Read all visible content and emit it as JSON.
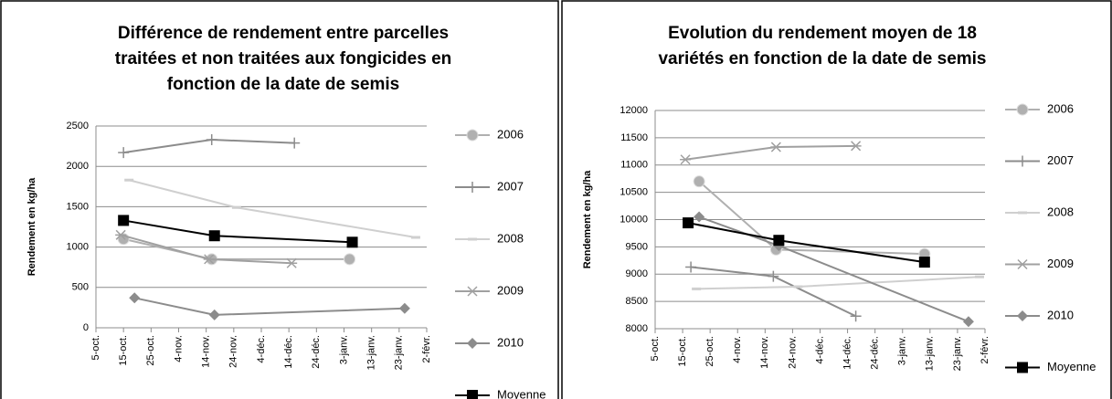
{
  "chart_data": [
    {
      "type": "line",
      "title": [
        "Différence de rendement entre parcelles",
        "traitées et non traitées aux fongicides en",
        "fonction de la date de semis"
      ],
      "ylabel": "Rendement en kg/ha",
      "xlim": [
        0,
        120
      ],
      "xticks": [
        {
          "value": 0,
          "label": "5-oct."
        },
        {
          "value": 10,
          "label": "15-oct."
        },
        {
          "value": 20,
          "label": "25-oct."
        },
        {
          "value": 30,
          "label": "4-nov."
        },
        {
          "value": 40,
          "label": "14-nov."
        },
        {
          "value": 50,
          "label": "24-nov."
        },
        {
          "value": 60,
          "label": "4-déc."
        },
        {
          "value": 70,
          "label": "14-déc."
        },
        {
          "value": 80,
          "label": "24-déc."
        },
        {
          "value": 90,
          "label": "3-janv."
        },
        {
          "value": 100,
          "label": "13-janv."
        },
        {
          "value": 110,
          "label": "23-janv."
        },
        {
          "value": 120,
          "label": "2-févr."
        }
      ],
      "ylim": [
        0,
        2500
      ],
      "yticks": [
        0,
        500,
        1000,
        1500,
        2000,
        2500
      ],
      "grid": true,
      "series": [
        {
          "name": "2006",
          "color": "#b0b0b0",
          "marker": "circle",
          "x": [
            10,
            42,
            92
          ],
          "values": [
            1100,
            850,
            850
          ]
        },
        {
          "name": "2007",
          "color": "#8c8c8c",
          "marker": "plus",
          "x": [
            10,
            42,
            72
          ],
          "values": [
            2170,
            2330,
            2290
          ]
        },
        {
          "name": "2008",
          "color": "#cfcfcf",
          "marker": "dash",
          "x": [
            12,
            51,
            116
          ],
          "values": [
            1830,
            1490,
            1120
          ]
        },
        {
          "name": "2009",
          "color": "#a0a0a0",
          "marker": "star",
          "x": [
            9,
            41,
            71
          ],
          "values": [
            1150,
            850,
            800
          ]
        },
        {
          "name": "2010",
          "color": "#8c8c8c",
          "marker": "diamond",
          "x": [
            14,
            43,
            112
          ],
          "values": [
            370,
            160,
            240
          ]
        },
        {
          "name": "Moyenne",
          "color": "#000000",
          "marker": "square",
          "x": [
            10,
            43,
            93
          ],
          "values": [
            1330,
            1140,
            1060
          ]
        }
      ]
    },
    {
      "type": "line",
      "title": [
        "Evolution du rendement moyen de 18",
        "variétés en fonction de la date de semis"
      ],
      "ylabel": "Rendement en kg/ha",
      "xlim": [
        0,
        120
      ],
      "xticks": [
        {
          "value": 0,
          "label": "5-oct."
        },
        {
          "value": 10,
          "label": "15-oct."
        },
        {
          "value": 20,
          "label": "25-oct."
        },
        {
          "value": 30,
          "label": "4-nov."
        },
        {
          "value": 40,
          "label": "14-nov."
        },
        {
          "value": 50,
          "label": "24-nov."
        },
        {
          "value": 60,
          "label": "4-déc."
        },
        {
          "value": 70,
          "label": "14-déc."
        },
        {
          "value": 80,
          "label": "24-déc."
        },
        {
          "value": 90,
          "label": "3-janv."
        },
        {
          "value": 100,
          "label": "13-janv."
        },
        {
          "value": 110,
          "label": "23-janv."
        },
        {
          "value": 120,
          "label": "2-févr."
        }
      ],
      "ylim": [
        8000,
        12000
      ],
      "yticks": [
        8000,
        8500,
        9000,
        9500,
        10000,
        10500,
        11000,
        11500,
        12000
      ],
      "grid": true,
      "series": [
        {
          "name": "2006",
          "color": "#b0b0b0",
          "marker": "circle",
          "x": [
            16,
            44,
            98
          ],
          "values": [
            10700,
            9450,
            9370
          ]
        },
        {
          "name": "2007",
          "color": "#8c8c8c",
          "marker": "plus",
          "x": [
            13,
            43,
            73
          ],
          "values": [
            9130,
            8960,
            8230
          ]
        },
        {
          "name": "2008",
          "color": "#cfcfcf",
          "marker": "dash",
          "x": [
            15,
            52,
            118
          ],
          "values": [
            8730,
            8770,
            8950
          ]
        },
        {
          "name": "2009",
          "color": "#a0a0a0",
          "marker": "star",
          "x": [
            11,
            44,
            73
          ],
          "values": [
            11100,
            11330,
            11350
          ]
        },
        {
          "name": "2010",
          "color": "#8c8c8c",
          "marker": "diamond",
          "x": [
            16,
            45,
            114
          ],
          "values": [
            10050,
            9520,
            8130
          ]
        },
        {
          "name": "Moyenne",
          "color": "#000000",
          "marker": "square",
          "x": [
            12,
            45,
            98
          ],
          "values": [
            9940,
            9620,
            9220
          ]
        }
      ]
    }
  ]
}
